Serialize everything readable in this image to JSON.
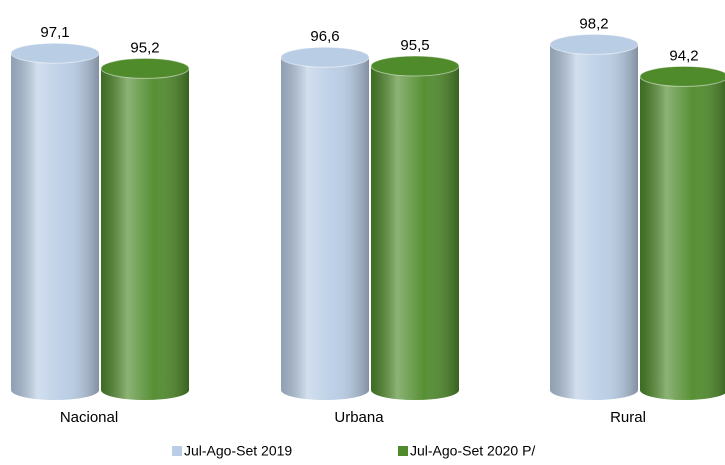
{
  "chart_data": {
    "type": "bar",
    "categories": [
      "Nacional",
      "Urbana",
      "Rural"
    ],
    "series": [
      {
        "name": "Jul-Ago-Set 2019",
        "color": "#b9cde5",
        "values": [
          97.1,
          96.6,
          98.2
        ],
        "value_labels": [
          "97,1",
          "96,6",
          "98,2"
        ]
      },
      {
        "name": "Jul-Ago-Set 2020 P/",
        "color": "#4f8a2b",
        "values": [
          95.2,
          95.5,
          94.2
        ],
        "value_labels": [
          "95,2",
          "95,5",
          "94,2"
        ]
      }
    ],
    "ylim": [
      55,
      100
    ]
  }
}
